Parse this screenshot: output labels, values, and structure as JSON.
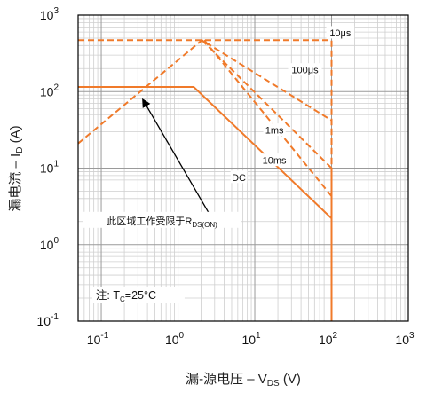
{
  "chart_data": {
    "type": "line",
    "title": "",
    "xlabel": {
      "main": "漏-源电压 – V",
      "sub": "DS",
      "unit": " (V)"
    },
    "ylabel": {
      "main": "漏电流 – I",
      "sub": "D",
      "unit": " (A)"
    },
    "x_scale": "log",
    "y_scale": "log",
    "xlim": [
      0.05,
      1000
    ],
    "ylim": [
      0.1,
      1000
    ],
    "grid": true,
    "x_ticks": [
      {
        "value": 0.1,
        "base": "10",
        "exp": "-1"
      },
      {
        "value": 1,
        "base": "10",
        "exp": "0"
      },
      {
        "value": 10,
        "base": "10",
        "exp": "1"
      },
      {
        "value": 100,
        "base": "10",
        "exp": "2"
      },
      {
        "value": 1000,
        "base": "10",
        "exp": "3"
      }
    ],
    "y_ticks": [
      {
        "value": 0.1,
        "base": "10",
        "exp": "-1"
      },
      {
        "value": 1,
        "base": "10",
        "exp": "0"
      },
      {
        "value": 10,
        "base": "10",
        "exp": "1"
      },
      {
        "value": 100,
        "base": "10",
        "exp": "2"
      },
      {
        "value": 1000,
        "base": "10",
        "exp": "3"
      }
    ],
    "series": [
      {
        "name": "10μs",
        "style": "dashed",
        "points": [
          [
            0.05,
            470
          ],
          [
            100,
            470
          ],
          [
            100,
            0.1
          ]
        ]
      },
      {
        "name": "100μs",
        "style": "dashed",
        "points": [
          [
            0.05,
            21
          ],
          [
            2.05,
            470
          ],
          [
            100,
            42
          ],
          [
            100,
            0.1
          ]
        ]
      },
      {
        "name": "1ms",
        "style": "dashed",
        "points": [
          [
            2.05,
            470
          ],
          [
            100,
            10
          ],
          [
            100,
            0.1
          ]
        ]
      },
      {
        "name": "10ms",
        "style": "dashed",
        "points": [
          [
            2.2,
            470
          ],
          [
            100,
            4.3
          ],
          [
            100,
            0.1
          ]
        ]
      },
      {
        "name": "DC",
        "style": "solid",
        "points": [
          [
            0.05,
            115
          ],
          [
            1.6,
            115
          ],
          [
            100,
            2.2
          ],
          [
            100,
            0.1
          ]
        ]
      }
    ],
    "series_labels": [
      {
        "text": "10μs",
        "x": 130,
        "y": 580
      },
      {
        "text": "100μs",
        "x": 45,
        "y": 190
      },
      {
        "text": "1ms",
        "x": 18,
        "y": 31
      },
      {
        "text": "10ms",
        "x": 18,
        "y": 12.5
      },
      {
        "text": "DC",
        "x": 6.2,
        "y": 7.5
      }
    ],
    "annotations": [
      {
        "name": "rds-on-annotation",
        "text_main": "此区域工作受限于R",
        "text_sub": "DS(ON)",
        "x": 0.62,
        "y": 2.0,
        "arrow_from": [
          2.6,
          2.45
        ],
        "arrow_to": [
          0.35,
          78
        ]
      },
      {
        "name": "temperature-note",
        "text_main": "注: T",
        "text_sub": "C",
        "text_after": "=25°C",
        "x": 0.085,
        "y": 0.21
      }
    ],
    "colors": {
      "series": "#f07a2a",
      "major_grid": "#9a9a9a",
      "minor_grid": "#cfcfcf",
      "frame": "#000000",
      "arrow": "#000000"
    }
  }
}
